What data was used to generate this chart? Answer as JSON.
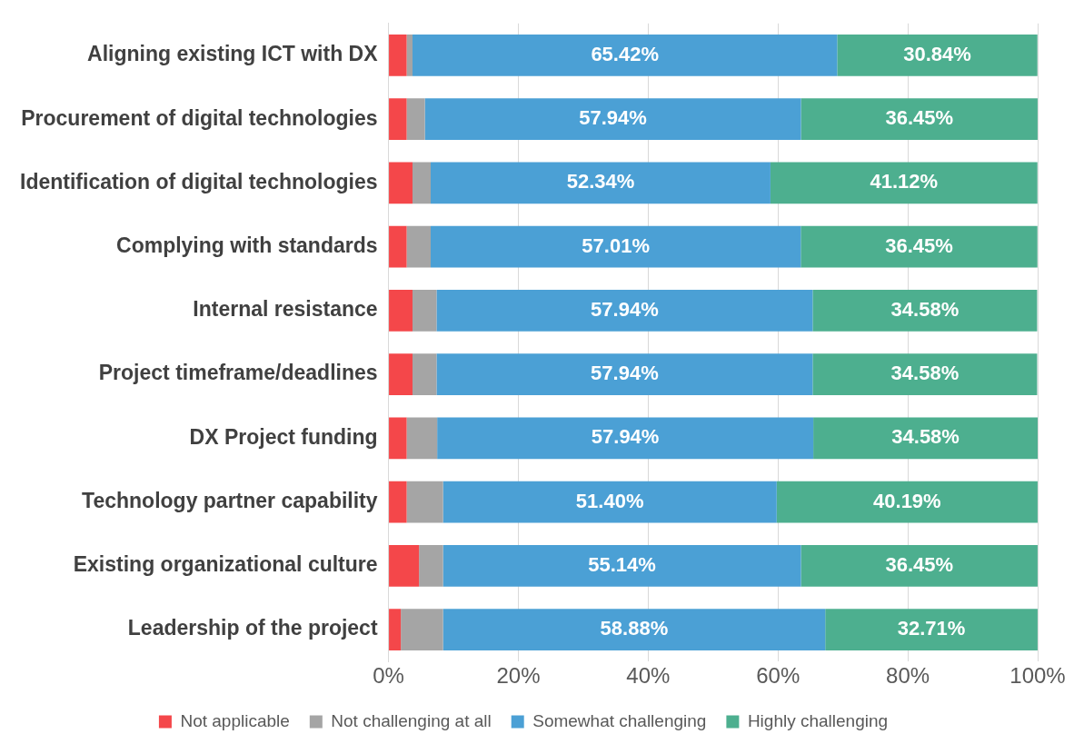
{
  "chart_data": {
    "type": "bar",
    "orientation": "horizontal",
    "stacked": true,
    "categories": [
      "Aligning existing ICT with DX",
      "Procurement of digital technologies",
      "Identification of digital technologies",
      "Complying with standards",
      "Internal resistance",
      "Project timeframe/deadlines",
      "DX Project funding",
      "Technology partner capability",
      "Existing organizational culture",
      "Leadership of the project"
    ],
    "series": [
      {
        "name": "Not applicable",
        "color": "#f4474a",
        "values": [
          2.8,
          2.8,
          3.7,
          2.8,
          3.7,
          3.7,
          2.8,
          2.8,
          4.7,
          1.9
        ]
      },
      {
        "name": "Not challenging at all",
        "color": "#a5a5a5",
        "values": [
          0.9,
          2.8,
          2.8,
          3.7,
          3.7,
          3.7,
          4.7,
          5.6,
          3.7,
          6.5
        ]
      },
      {
        "name": "Somewhat challenging",
        "color": "#4ba0d5",
        "values": [
          65.42,
          57.94,
          52.34,
          57.01,
          57.94,
          57.94,
          57.94,
          51.4,
          55.14,
          58.88
        ],
        "value_labels": [
          "65.42%",
          "57.94%",
          "52.34%",
          "57.01%",
          "57.94%",
          "57.94%",
          "57.94%",
          "51.40%",
          "55.14%",
          "58.88%"
        ]
      },
      {
        "name": "Highly challenging",
        "color": "#4daf8f",
        "values": [
          30.84,
          36.45,
          41.12,
          36.45,
          34.58,
          34.58,
          34.58,
          40.19,
          36.45,
          32.71
        ],
        "value_labels": [
          "30.84%",
          "36.45%",
          "41.12%",
          "36.45%",
          "34.58%",
          "34.58%",
          "34.58%",
          "40.19%",
          "36.45%",
          "32.71%"
        ]
      }
    ],
    "xlim": [
      0,
      100
    ],
    "xticks": [
      {
        "value": 0,
        "label": "0%"
      },
      {
        "value": 20,
        "label": "20%"
      },
      {
        "value": 40,
        "label": "40%"
      },
      {
        "value": 60,
        "label": "60%"
      },
      {
        "value": 80,
        "label": "80%"
      },
      {
        "value": 100,
        "label": "100%"
      }
    ],
    "grid": "x",
    "legend": "bottom"
  }
}
